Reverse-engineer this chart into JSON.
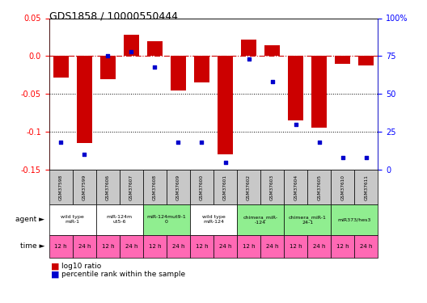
{
  "title": "GDS1858 / 10000550444",
  "samples": [
    "GSM37598",
    "GSM37599",
    "GSM37606",
    "GSM37607",
    "GSM37608",
    "GSM37609",
    "GSM37600",
    "GSM37601",
    "GSM37602",
    "GSM37603",
    "GSM37604",
    "GSM37605",
    "GSM37610",
    "GSM37611"
  ],
  "log10_ratio": [
    -0.028,
    -0.115,
    -0.03,
    0.028,
    0.02,
    -0.045,
    -0.035,
    -0.13,
    0.022,
    0.014,
    -0.085,
    -0.095,
    -0.01,
    -0.012
  ],
  "percentile_rank": [
    18,
    10,
    75,
    78,
    68,
    18,
    18,
    5,
    73,
    58,
    30,
    18,
    8,
    8
  ],
  "ylim_left": [
    -0.15,
    0.05
  ],
  "ylim_right": [
    0,
    100
  ],
  "bar_color": "#cc0000",
  "dot_color": "#0000cc",
  "agents": [
    {
      "label": "wild type\nmiR-1",
      "span": [
        0,
        2
      ],
      "color": "#ffffff"
    },
    {
      "label": "miR-124m\nut5-6",
      "span": [
        2,
        4
      ],
      "color": "#ffffff"
    },
    {
      "label": "miR-124mut9-1\n0",
      "span": [
        4,
        6
      ],
      "color": "#90ee90"
    },
    {
      "label": "wild type\nmiR-124",
      "span": [
        6,
        8
      ],
      "color": "#ffffff"
    },
    {
      "label": "chimera_miR-\n-124",
      "span": [
        8,
        10
      ],
      "color": "#90ee90"
    },
    {
      "label": "chimera_miR-1\n24-1",
      "span": [
        10,
        12
      ],
      "color": "#90ee90"
    },
    {
      "label": "miR373/hes3",
      "span": [
        12,
        14
      ],
      "color": "#90ee90"
    }
  ],
  "time_labels": [
    "12 h",
    "24 h",
    "12 h",
    "24 h",
    "12 h",
    "24 h",
    "12 h",
    "24 h",
    "12 h",
    "24 h",
    "12 h",
    "24 h",
    "12 h",
    "24 h"
  ],
  "time_color": "#ff69b4",
  "sample_box_color": "#c8c8c8",
  "legend_red_label": "log10 ratio",
  "legend_blue_label": "percentile rank within the sample",
  "yticks_left": [
    -0.15,
    -0.1,
    -0.05,
    0.0,
    0.05
  ],
  "yticks_right": [
    0,
    25,
    50,
    75,
    100
  ],
  "ytick_labels_right": [
    "0",
    "25",
    "50",
    "75",
    "100%"
  ]
}
